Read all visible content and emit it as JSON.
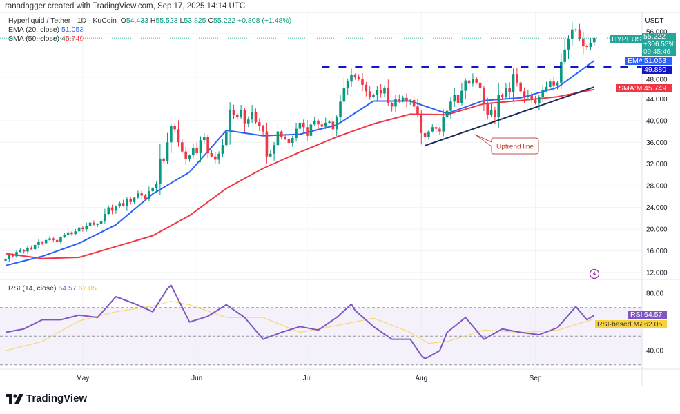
{
  "credit": "ranadagger created with TradingView.com, Sep 17, 2025 14:14 UTC",
  "symbol_title": "Hyperliquid / Tether · 1D · KuCoin",
  "ohlc": {
    "o_label": "O",
    "o": "54.433",
    "h_label": "H",
    "h": "55.523",
    "l_label": "L",
    "l": "53.825",
    "c_label": "C",
    "c": "55.222",
    "change": "+0.808 (+1.48%)"
  },
  "ema_legend": {
    "label": "EMA (20, close)",
    "value": "51.053"
  },
  "sma_legend": {
    "label": "SMA (50, close)",
    "value": "45.749"
  },
  "rsi_legend": {
    "label": "RSI (14, close)",
    "value": "64.57",
    "ma_value": "62.05"
  },
  "currency": "USDT",
  "badges": {
    "symbol": "HYPEUSDT",
    "price": "55.222",
    "pct": "+306.55%",
    "countdown": "09:45:46",
    "ema_label": "EMA",
    "ema_value": "51.053",
    "resistance_value": "49.880",
    "sma_label": "SMA:MA",
    "sma_value": "45.749",
    "rsi_label": "RSI",
    "rsi_value": "64.57",
    "rsima_label": "RSI-based MA",
    "rsima_value": "62.05"
  },
  "annotation": "Uptrend line",
  "logo_text": "TradingView",
  "icons": {
    "alert": "lightning-icon",
    "logo": "tradingview-logo"
  },
  "colors": {
    "up": "#089981",
    "down": "#f23645",
    "ema": "#2962ff",
    "sma": "#f23645",
    "resistance": "#1414c8",
    "trendline": "#1c2b5a",
    "rsi": "#7e57c2",
    "rsi_ma": "#f7d774",
    "rsi_band": "#ede7f6"
  },
  "chart_data": {
    "type": "candlestick",
    "interval": "1D",
    "first_date": "2025-04-10",
    "last_date": "2025-09-17",
    "closes": [
      14.5,
      15.2,
      15.0,
      15.8,
      16.2,
      15.9,
      16.6,
      16.3,
      17.1,
      17.7,
      17.4,
      18.0,
      18.3,
      18.0,
      17.6,
      18.5,
      19.0,
      19.4,
      19.1,
      19.6,
      20.3,
      20.0,
      20.6,
      21.2,
      20.8,
      21.0,
      21.5,
      22.8,
      24.0,
      23.4,
      24.2,
      24.8,
      24.3,
      25.5,
      25.0,
      25.8,
      26.6,
      26.2,
      25.6,
      27.0,
      27.6,
      28.3,
      33.0,
      32.5,
      36.0,
      39.0,
      38.4,
      36.0,
      34.3,
      33.0,
      33.6,
      35.0,
      34.0,
      36.4,
      37.0,
      34.0,
      33.4,
      32.8,
      33.9,
      35.5,
      38.0,
      41.9,
      41.0,
      40.6,
      41.9,
      39.5,
      40.2,
      41.6,
      39.7,
      39.0,
      38.0,
      33.4,
      33.9,
      35.5,
      38.0,
      37.0,
      36.6,
      35.9,
      36.8,
      38.5,
      39.6,
      38.8,
      37.2,
      39.3,
      40.0,
      39.3,
      38.9,
      39.6,
      39.8,
      38.4,
      40.6,
      43.5,
      46.0,
      47.2,
      48.5,
      48.0,
      47.6,
      46.6,
      45.4,
      44.4,
      44.8,
      45.7,
      45.0,
      46.0,
      43.2,
      42.6,
      44.0,
      43.6,
      44.2,
      43.5,
      43.8,
      42.6,
      41.0,
      37.7,
      37.0,
      38.0,
      38.8,
      38.5,
      38.0,
      40.6,
      41.8,
      43.5,
      44.8,
      43.2,
      45.5,
      47.4,
      46.8,
      47.6,
      47.0,
      46.0,
      43.2,
      41.0,
      42.0,
      40.6,
      44.8,
      44.3,
      46.0,
      45.2,
      48.6,
      47.0,
      45.4,
      44.4,
      44.8,
      43.8,
      43.2,
      44.4,
      45.7,
      46.2,
      47.2,
      46.5,
      47.0,
      50.8,
      53.1,
      55.0,
      56.8,
      56.8,
      55.0,
      53.7,
      53.6,
      54.3,
      55.222
    ],
    "last_candle": {
      "open": 54.433,
      "high": 55.523,
      "low": 53.825,
      "close": 55.222
    },
    "ema20": {
      "days": [
        0,
        10,
        20,
        30,
        40,
        50,
        60,
        70,
        80,
        90,
        100,
        110,
        120,
        130,
        140,
        150,
        160
      ],
      "values": [
        13.3,
        15.0,
        17.4,
        20.8,
        26.5,
        30.5,
        38.2,
        37.2,
        37.5,
        39.2,
        43.6,
        43.6,
        41.3,
        43.7,
        44.2,
        46.1,
        51.053
      ]
    },
    "sma50": {
      "days": [
        0,
        10,
        20,
        30,
        40,
        50,
        60,
        70,
        80,
        90,
        100,
        110,
        120,
        130,
        140,
        150,
        160
      ],
      "values": [
        15.5,
        14.6,
        14.8,
        16.8,
        18.8,
        22.5,
        27.5,
        31.2,
        34.2,
        37.0,
        39.4,
        41.2,
        41.1,
        43.1,
        43.7,
        44.4,
        45.749
      ]
    },
    "resistance": {
      "value": 49.88,
      "from_day": 86
    },
    "uptrend_line": {
      "from": {
        "day": 114,
        "price": 35.4
      },
      "to": {
        "day": 160,
        "price": 46.2
      }
    },
    "price_axis": {
      "min": 12,
      "max": 56,
      "ticks": [
        "56.000",
        "48.000",
        "44.000",
        "40.000",
        "36.000",
        "32.000",
        "28.000",
        "24.000",
        "20.000",
        "16.000",
        "12.000"
      ]
    },
    "time_axis": {
      "labels": [
        {
          "label": "May",
          "day": 21
        },
        {
          "label": "Jun",
          "day": 52
        },
        {
          "label": "Jul",
          "day": 82
        },
        {
          "label": "Aug",
          "day": 113
        },
        {
          "label": "Sep",
          "day": 144
        }
      ]
    },
    "rsi": {
      "days": [
        0,
        5,
        10,
        15,
        20,
        25,
        30,
        35,
        40,
        44,
        45,
        50,
        55,
        60,
        65,
        70,
        75,
        80,
        85,
        90,
        94,
        95,
        100,
        105,
        110,
        113,
        114,
        118,
        120,
        125,
        130,
        135,
        140,
        145,
        150,
        155,
        158,
        160
      ],
      "values": [
        52.7,
        55.1,
        61.5,
        61.5,
        64.7,
        63.1,
        77.6,
        72.8,
        67.1,
        83.2,
        85.6,
        59.9,
        63.9,
        72.0,
        63.1,
        47.9,
        52.7,
        56.7,
        54.3,
        63.1,
        72.4,
        68.0,
        56.7,
        47.9,
        47.9,
        36.6,
        34.2,
        39.9,
        52.7,
        63.1,
        47.9,
        55.1,
        52.7,
        51.1,
        55.9,
        70.7,
        61.5,
        64.57
      ]
    },
    "rsi_ma": {
      "days": [
        0,
        10,
        20,
        30,
        40,
        45,
        50,
        60,
        70,
        80,
        90,
        100,
        110,
        115,
        120,
        130,
        140,
        150,
        160
      ],
      "values": [
        39.9,
        46.3,
        60.7,
        67.1,
        71.2,
        74.4,
        72.0,
        63.1,
        63.1,
        52.7,
        57.5,
        62.6,
        52.7,
        45.0,
        46.3,
        54.3,
        52.7,
        54.1,
        62.05
      ]
    },
    "rsi_axis": {
      "ticks": [
        "80.00",
        "40.00"
      ],
      "bands": [
        70,
        50,
        30
      ]
    }
  }
}
